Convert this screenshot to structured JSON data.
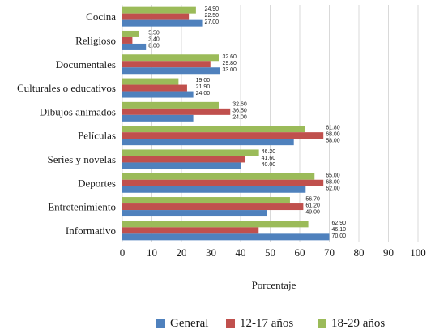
{
  "chart_data": {
    "type": "bar",
    "orientation": "horizontal",
    "title": "",
    "xlabel": "Porcentaje",
    "ylabel": "",
    "xlim": [
      0,
      100
    ],
    "xticks": [
      0,
      10,
      20,
      30,
      40,
      50,
      60,
      70,
      80,
      90,
      100
    ],
    "grid": true,
    "legend_position": "bottom",
    "categories": [
      "Cocina",
      "Religioso",
      "Documentales",
      "Culturales o educativos",
      "Dibujos animados",
      "Películas",
      "Series y novelas",
      "Deportes",
      "Entretenimiento",
      "Informativo"
    ],
    "series": [
      {
        "name": "General",
        "color": "#4f81bd",
        "values": [
          27.0,
          8.0,
          33.0,
          24.0,
          24.0,
          58.0,
          40.0,
          62.0,
          49.0,
          70.0
        ],
        "labels": [
          "27.00",
          "8.00",
          "33.00",
          "24.00",
          "24.00",
          "58.00",
          "40.00",
          "62.00",
          "49.00",
          "70.00"
        ]
      },
      {
        "name": "12-17 años",
        "color": "#c0504d",
        "values": [
          22.5,
          3.4,
          29.8,
          21.9,
          36.5,
          68.0,
          41.6,
          68.0,
          61.2,
          46.1
        ],
        "labels": [
          "22.50",
          "3.40",
          "29.80",
          "21.90",
          "36.50",
          "68.00",
          "41.60",
          "68.00",
          "61.20",
          "46.10"
        ]
      },
      {
        "name": "18-29 años",
        "color": "#9bbb59",
        "values": [
          24.9,
          5.5,
          32.6,
          19.0,
          32.6,
          61.8,
          46.2,
          65.0,
          56.7,
          62.9
        ],
        "labels": [
          "24.90",
          "5.50",
          "32.60",
          "19.00",
          "32.60",
          "61.80",
          "46.20",
          "65.00",
          "56.70",
          "62.90"
        ]
      }
    ]
  }
}
